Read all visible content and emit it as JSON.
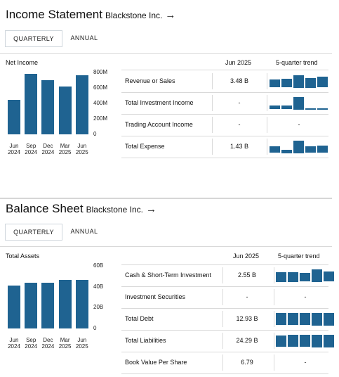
{
  "income": {
    "title": "Income Statement",
    "company": "Blackstone Inc.",
    "arrow": "→",
    "tabs": [
      "QUARTERLY",
      "ANNUAL"
    ],
    "chart_label": "Net Income",
    "col_period": "Jun 2025",
    "col_trend": "5-quarter trend",
    "rows": [
      {
        "label": "Revenue or Sales",
        "value": "3.48 B",
        "trend": [
          0.62,
          0.68,
          1.0,
          0.75,
          0.85
        ]
      },
      {
        "label": "Total Investment Income",
        "value": "-",
        "trend": [
          0.3,
          0.28,
          1.0,
          0.05,
          0.0
        ]
      },
      {
        "label": "Trading Account Income",
        "value": "-",
        "trend_text": "-"
      },
      {
        "label": "Total Expense",
        "value": "1.43 B",
        "trend": [
          0.55,
          0.25,
          1.0,
          0.55,
          0.6
        ]
      }
    ]
  },
  "balance": {
    "title": "Balance Sheet",
    "company": "Blackstone Inc.",
    "arrow": "→",
    "tabs": [
      "QUARTERLY",
      "ANNUAL"
    ],
    "chart_label": "Total Assets",
    "col_period": "Jun 2025",
    "col_trend": "5-quarter trend",
    "rows": [
      {
        "label": "Cash & Short-Term Investment",
        "value": "2.55 B",
        "trend": [
          0.75,
          0.75,
          0.7,
          1.0,
          0.8
        ]
      },
      {
        "label": "Investment Securities",
        "value": "-",
        "trend_text": "-"
      },
      {
        "label": "Total Debt",
        "value": "12.93 B",
        "trend": [
          0.95,
          0.95,
          0.95,
          1.0,
          1.0
        ]
      },
      {
        "label": "Total Liabilities",
        "value": "24.29 B",
        "trend": [
          0.9,
          0.95,
          0.95,
          1.0,
          1.0
        ]
      },
      {
        "label": "Book Value Per Share",
        "value": "6.79",
        "trend_text": "-"
      }
    ]
  },
  "chart_data": [
    {
      "type": "bar",
      "title": "Net Income",
      "categories": [
        "Jun 2024",
        "Sep 2024",
        "Dec 2024",
        "Mar 2025",
        "Jun 2025"
      ],
      "category_lines": [
        [
          "Jun",
          "2024"
        ],
        [
          "Sep",
          "2024"
        ],
        [
          "Dec",
          "2024"
        ],
        [
          "Mar",
          "2025"
        ],
        [
          "Jun",
          "2025"
        ]
      ],
      "values": [
        444,
        780,
        704,
        614,
        764
      ],
      "yticks": [
        "800M",
        "600M",
        "400M",
        "200M",
        "0"
      ],
      "ylim": [
        0,
        800
      ],
      "color": "#1f6391"
    },
    {
      "type": "bar",
      "title": "Total Assets",
      "categories": [
        "Jun 2024",
        "Sep 2024",
        "Dec 2024",
        "Mar 2025",
        "Jun 2025"
      ],
      "category_lines": [
        [
          "Jun",
          "2024"
        ],
        [
          "Sep",
          "2024"
        ],
        [
          "Dec",
          "2024"
        ],
        [
          "Mar",
          "2025"
        ],
        [
          "Jun",
          "2025"
        ]
      ],
      "values": [
        41,
        43.5,
        44,
        46.5,
        46.5
      ],
      "yticks": [
        "60B",
        "40B",
        "20B",
        "0"
      ],
      "ylim": [
        0,
        60
      ],
      "color": "#1f6391"
    }
  ]
}
